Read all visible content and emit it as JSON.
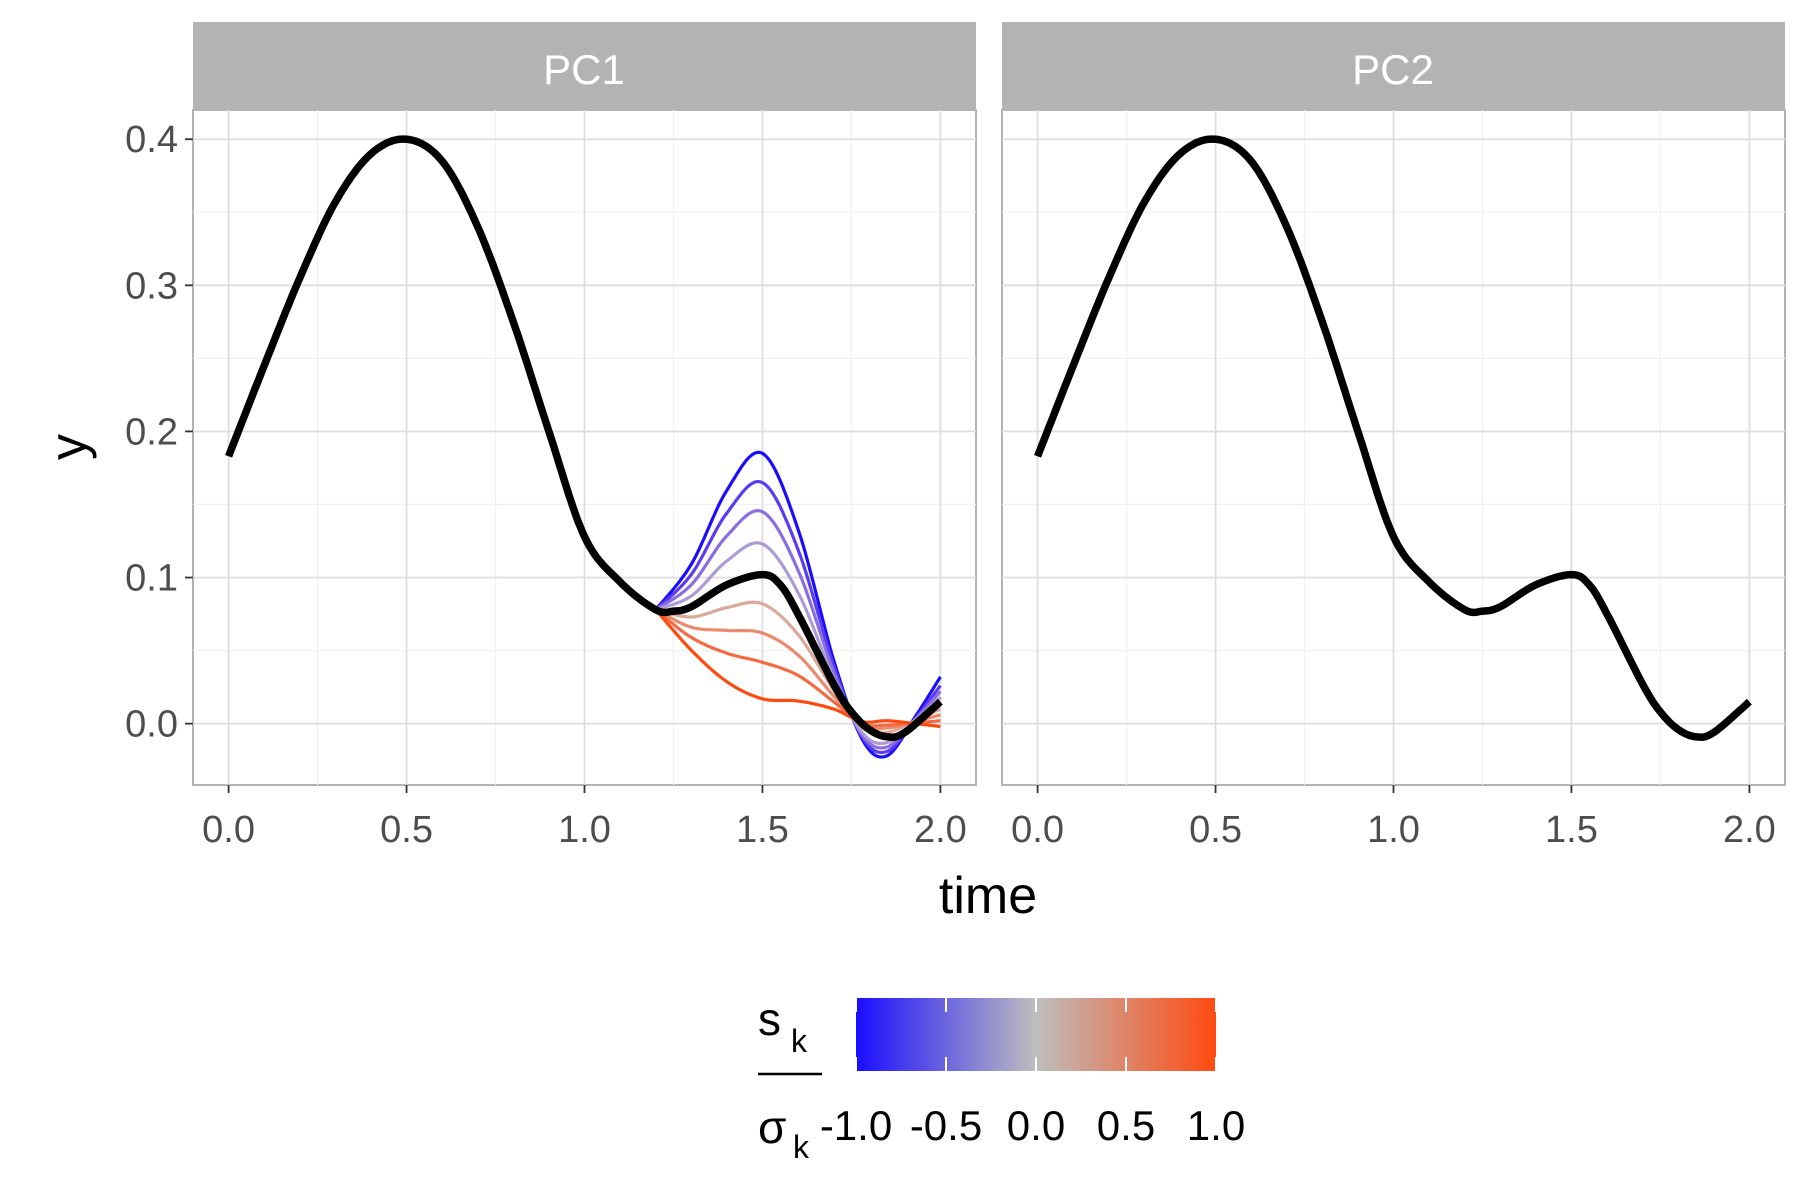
{
  "chart_data": {
    "type": "line",
    "xlabel": "time",
    "ylabel": "y",
    "xlim": [
      -0.1,
      2.1
    ],
    "ylim": [
      -0.042,
      0.42
    ],
    "x_ticks": [
      0.0,
      0.5,
      1.0,
      1.5,
      2.0
    ],
    "x_tick_labels": [
      "0.0",
      "0.5",
      "1.0",
      "1.5",
      "2.0"
    ],
    "y_ticks": [
      0.0,
      0.1,
      0.2,
      0.3,
      0.4
    ],
    "y_tick_labels": [
      "0.0",
      "0.1",
      "0.2",
      "0.3",
      "0.4"
    ],
    "grid": true,
    "panels": [
      {
        "strip_label": "PC1",
        "has_variations": true
      },
      {
        "strip_label": "PC2",
        "has_variations": false
      }
    ],
    "mean_curve": {
      "color": "#000000",
      "x": [
        0.0,
        0.1,
        0.2,
        0.3,
        0.4,
        0.5,
        0.6,
        0.7,
        0.8,
        0.9,
        1.0,
        1.1,
        1.2,
        1.25,
        1.3,
        1.4,
        1.5,
        1.55,
        1.6,
        1.7,
        1.75,
        1.8,
        1.85,
        1.9,
        2.0
      ],
      "y": [
        0.183,
        0.245,
        0.305,
        0.357,
        0.39,
        0.4,
        0.385,
        0.34,
        0.275,
        0.2,
        0.128,
        0.097,
        0.078,
        0.077,
        0.08,
        0.095,
        0.102,
        0.095,
        0.075,
        0.027,
        0.008,
        -0.004,
        -0.009,
        -0.006,
        0.015
      ]
    },
    "variation": {
      "x_start": 1.2,
      "peak_x": 1.5,
      "trough_x": 1.85,
      "end_x": 2.0,
      "series": [
        {
          "s_over_sigma": -1.0,
          "color": "#1a0dff",
          "y_peak": 0.185,
          "y_trough": -0.022,
          "y_end": 0.032
        },
        {
          "s_over_sigma": -0.75,
          "color": "#5a3df0",
          "y_peak": 0.165,
          "y_trough": -0.019,
          "y_end": 0.026
        },
        {
          "s_over_sigma": -0.5,
          "color": "#8a6ee0",
          "y_peak": 0.145,
          "y_trough": -0.016,
          "y_end": 0.022
        },
        {
          "s_over_sigma": -0.25,
          "color": "#ab9cd6",
          "y_peak": 0.123,
          "y_trough": -0.013,
          "y_end": 0.018
        },
        {
          "s_over_sigma": 0.25,
          "color": "#d9a99a",
          "y_peak": 0.082,
          "y_trough": -0.006,
          "y_end": 0.01
        },
        {
          "s_over_sigma": 0.5,
          "color": "#ea8a6e",
          "y_peak": 0.062,
          "y_trough": -0.003,
          "y_end": 0.006
        },
        {
          "s_over_sigma": 0.75,
          "color": "#f56a42",
          "y_peak": 0.042,
          "y_trough": -0.001,
          "y_end": 0.002
        },
        {
          "s_over_sigma": 1.0,
          "color": "#ff4a10",
          "y_peak": 0.017,
          "y_trough": 0.002,
          "y_end": -0.002
        }
      ]
    },
    "legend": {
      "title_numerator": "s",
      "title_numerator_sub": "k",
      "title_denominator": "σ",
      "title_denominator_sub": "k",
      "position": "bottom",
      "range": [
        -1.0,
        1.0
      ],
      "ticks": [
        -1.0,
        -0.5,
        0.0,
        0.5,
        1.0
      ],
      "tick_labels": [
        "-1.0",
        "-0.5",
        "0.0",
        "0.5",
        "1.0"
      ],
      "colors": {
        "low": "#1a0dff",
        "mid": "#bebebe",
        "high": "#ff4a10"
      }
    }
  }
}
